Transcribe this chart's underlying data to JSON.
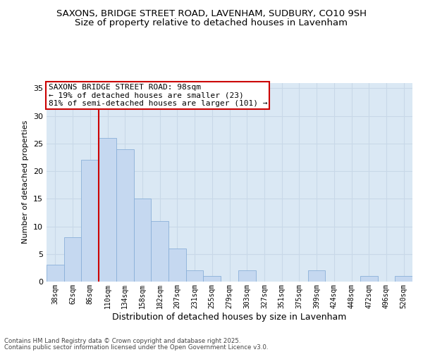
{
  "title1": "SAXONS, BRIDGE STREET ROAD, LAVENHAM, SUDBURY, CO10 9SH",
  "title2": "Size of property relative to detached houses in Lavenham",
  "xlabel": "Distribution of detached houses by size in Lavenham",
  "ylabel": "Number of detached properties",
  "bins": [
    "38sqm",
    "62sqm",
    "86sqm",
    "110sqm",
    "134sqm",
    "158sqm",
    "182sqm",
    "207sqm",
    "231sqm",
    "255sqm",
    "279sqm",
    "303sqm",
    "327sqm",
    "351sqm",
    "375sqm",
    "399sqm",
    "424sqm",
    "448sqm",
    "472sqm",
    "496sqm",
    "520sqm"
  ],
  "values": [
    3,
    8,
    22,
    26,
    24,
    15,
    11,
    6,
    2,
    1,
    0,
    2,
    0,
    0,
    0,
    2,
    0,
    0,
    1,
    0,
    1
  ],
  "bar_color": "#c5d8f0",
  "bar_edgecolor": "#8ab0d8",
  "property_line_x": 2.5,
  "annotation_text": "SAXONS BRIDGE STREET ROAD: 98sqm\n← 19% of detached houses are smaller (23)\n81% of semi-detached houses are larger (101) →",
  "annotation_box_color": "#ffffff",
  "annotation_box_edgecolor": "#cc0000",
  "annotation_fontsize": 8,
  "vline_color": "#cc0000",
  "ylim": [
    0,
    36
  ],
  "yticks": [
    0,
    5,
    10,
    15,
    20,
    25,
    30,
    35
  ],
  "footer1": "Contains HM Land Registry data © Crown copyright and database right 2025.",
  "footer2": "Contains public sector information licensed under the Open Government Licence v3.0.",
  "title_fontsize": 9.5,
  "subtitle_fontsize": 9.5,
  "xlabel_fontsize": 9,
  "ylabel_fontsize": 8,
  "grid_color": "#c8d8e8",
  "background_color": "#dae8f4"
}
